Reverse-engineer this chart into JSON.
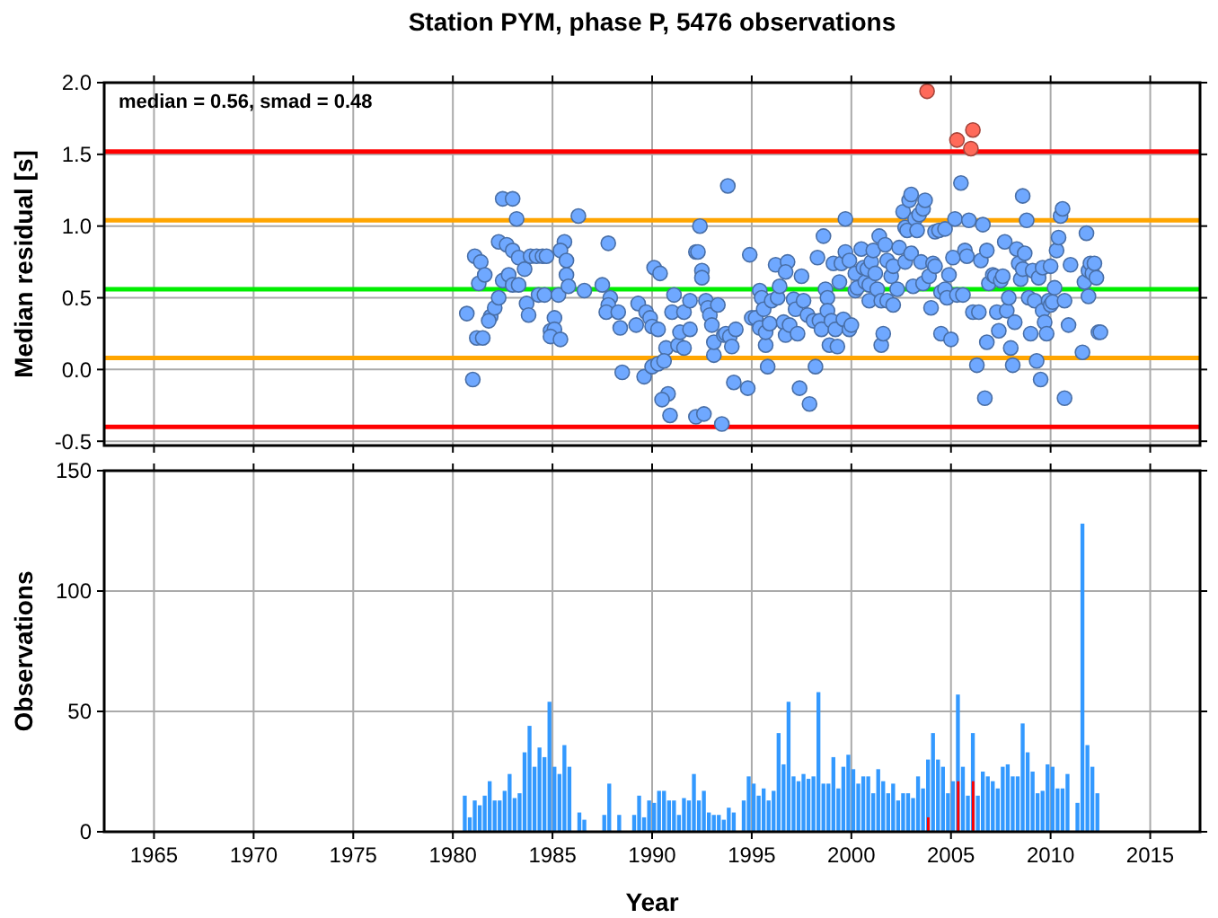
{
  "chart_data": [
    {
      "type": "scatter",
      "title": "Station PYM, phase P, 5476 observations",
      "ylabel": "Median residual [s]",
      "annotations": [
        "median = 0.56, smad = 0.48"
      ],
      "xlim": [
        1962.5,
        2017.5
      ],
      "xticks": [
        1965,
        1970,
        1975,
        1980,
        1985,
        1990,
        1995,
        2000,
        2005,
        2010,
        2015
      ],
      "ylim": [
        -0.53,
        2.0
      ],
      "yticks": [
        {
          "value": -0.5,
          "label": "-0.5"
        },
        {
          "value": 0,
          "label": "0.0"
        },
        {
          "value": 0.5,
          "label": "0.5"
        },
        {
          "value": 1,
          "label": "1.0"
        },
        {
          "value": 1.5,
          "label": "1.5"
        },
        {
          "value": 2,
          "label": "2.0"
        }
      ],
      "tick_labels": "y",
      "grid": true,
      "marker": "circle",
      "ref_lines": [
        {
          "axis": "y",
          "value": 1.52,
          "color": "#ff0000"
        },
        {
          "axis": "y",
          "value": 1.04,
          "color": "#ffa500"
        },
        {
          "axis": "y",
          "value": 0.56,
          "color": "#00ee00"
        },
        {
          "axis": "y",
          "value": 0.08,
          "color": "#ffa500"
        },
        {
          "axis": "y",
          "value": -0.4,
          "color": "#ff0000"
        }
      ],
      "series": [
        {
          "color": "#6fa8ff",
          "x": [
            1980.7,
            1981.0,
            1981.2,
            1981.5,
            1981.1,
            1981.4,
            1981.3,
            1981.6,
            1982.5,
            1983.0,
            1983.2,
            1982.3,
            1982.7,
            1983.0,
            1983.3,
            1981.9,
            1981.8,
            1982.1,
            1982.3,
            1982.5,
            1982.8,
            1983.0,
            1983.3,
            1983.6,
            1983.9,
            1984.2,
            1984.5,
            1984.7,
            1983.7,
            1983.8,
            1984.3,
            1984.6,
            1985.1,
            1984.9,
            1985.1,
            1984.9,
            1985.4,
            1985.3,
            1985.6,
            1985.4,
            1985.7,
            1985.7,
            1985.8,
            1986.3,
            1986.6,
            1987.5,
            1987.8,
            1987.9,
            1987.8,
            1987.7,
            1988.3,
            1988.4,
            1988.5,
            1989.2,
            1989.3,
            1989.6,
            1989.7,
            1989.9,
            1990.0,
            1990.3,
            1990.1,
            1990.4,
            1991.1,
            1990.7,
            1991.0,
            1991.3,
            1991.6,
            1991.4,
            1991.9,
            1991.6,
            1991.9,
            1990.0,
            1990.3,
            1990.6,
            1990.8,
            1990.5,
            1990.9,
            1992.2,
            1992.6,
            1993.5,
            1992.4,
            1992.2,
            1992.3,
            1992.5,
            1992.5,
            1992.7,
            1992.8,
            1992.9,
            1993.0,
            1993.3,
            1993.1,
            1993.1,
            1993.6,
            1993.8,
            1993.7,
            1993.9,
            1994.0,
            1994.2,
            1994.1,
            1994.8,
            1994.9,
            1995.0,
            1995.2,
            1995.4,
            1995.4,
            1995.5,
            1995.6,
            1995.7,
            1995.7,
            1995.8,
            1995.9,
            1996.0,
            1996.2,
            1996.3,
            1996.4,
            1996.6,
            1996.7,
            1996.8,
            1996.7,
            1996.9,
            1997.1,
            1997.2,
            1997.3,
            1997.4,
            1997.5,
            1997.6,
            1997.8,
            1997.9,
            1998.1,
            1998.2,
            1998.3,
            1998.4,
            1998.5,
            1998.6,
            1998.7,
            1998.8,
            1998.8,
            1998.9,
            1999.0,
            1999.1,
            1999.2,
            1999.3,
            1999.4,
            1999.5,
            1999.6,
            1999.7,
            1999.7,
            1999.9,
            1999.9,
            2000.0,
            2000.2,
            2000.2,
            2000.3,
            2000.5,
            2000.6,
            2000.7,
            2000.8,
            2000.9,
            2000.9,
            2001.0,
            2001.1,
            2001.2,
            2001.3,
            2001.4,
            2001.5,
            2001.5,
            2001.6,
            2001.7,
            2001.8,
            2001.8,
            2002.0,
            2002.1,
            2002.1,
            2002.3,
            2002.4,
            2002.6,
            2002.7,
            2002.7,
            2002.8,
            2002.9,
            2003.0,
            2003.0,
            2003.1,
            2003.2,
            2003.3,
            2003.4,
            2003.5,
            2003.6,
            2003.6,
            2003.7,
            2003.9,
            2004.0,
            2004.1,
            2004.2,
            2004.2,
            2004.4,
            2004.5,
            2004.5,
            2004.7,
            2004.7,
            2004.8,
            2004.9,
            2005.0,
            2005.1,
            2005.2,
            2005.3,
            2005.5,
            2005.6,
            2005.7,
            2005.8,
            2005.9,
            2006.1,
            2006.3,
            2006.4,
            2006.5,
            2006.6,
            2006.7,
            2006.8,
            2006.8,
            2006.9,
            2007.1,
            2007.2,
            2007.3,
            2007.4,
            2007.5,
            2007.6,
            2007.7,
            2007.8,
            2007.9,
            2008.0,
            2008.1,
            2008.2,
            2008.3,
            2008.4,
            2008.5,
            2008.6,
            2008.6,
            2008.7,
            2008.8,
            2008.9,
            2009.0,
            2009.1,
            2009.2,
            2009.3,
            2009.4,
            2009.5,
            2009.6,
            2009.6,
            2009.7,
            2009.8,
            2009.9,
            2010.0,
            2010.0,
            2010.1,
            2010.2,
            2010.3,
            2010.4,
            2010.5,
            2010.6,
            2010.7,
            2010.7,
            2010.9,
            2011.0,
            2011.6,
            2011.7,
            2011.8,
            2011.9,
            2012.0,
            2012.1,
            2012.2,
            2012.3,
            2012.4,
            2012.5,
            2011.9
          ],
          "values": [
            0.39,
            -0.07,
            0.22,
            0.22,
            0.79,
            0.75,
            0.6,
            0.66,
            1.19,
            1.19,
            1.05,
            0.89,
            0.87,
            0.83,
            0.78,
            0.37,
            0.34,
            0.43,
            0.5,
            0.62,
            0.66,
            0.59,
            0.59,
            0.7,
            0.79,
            0.79,
            0.79,
            0.79,
            0.46,
            0.38,
            0.52,
            0.52,
            0.36,
            0.27,
            0.28,
            0.23,
            0.21,
            0.52,
            0.89,
            0.83,
            0.76,
            0.66,
            0.58,
            1.07,
            0.55,
            0.59,
            0.88,
            0.5,
            0.45,
            0.4,
            0.4,
            0.29,
            -0.02,
            0.31,
            0.46,
            -0.05,
            0.4,
            0.36,
            0.3,
            0.28,
            0.71,
            0.67,
            0.52,
            0.15,
            0.4,
            0.17,
            0.15,
            0.26,
            0.28,
            0.4,
            0.48,
            0.02,
            0.04,
            0.06,
            -0.17,
            -0.21,
            -0.32,
            -0.33,
            -0.31,
            -0.38,
            1.0,
            0.82,
            0.82,
            0.69,
            0.64,
            0.48,
            0.43,
            0.38,
            0.31,
            0.45,
            0.1,
            0.19,
            0.24,
            1.28,
            0.25,
            0.23,
            0.16,
            0.28,
            -0.09,
            -0.13,
            0.8,
            0.36,
            0.36,
            0.29,
            0.55,
            0.5,
            0.42,
            0.17,
            0.26,
            0.02,
            0.32,
            0.48,
            0.73,
            0.5,
            0.58,
            0.33,
            0.24,
            0.75,
            0.68,
            0.31,
            0.49,
            0.42,
            0.25,
            -0.13,
            0.65,
            0.48,
            0.38,
            -0.24,
            0.34,
            0.02,
            0.78,
            0.34,
            0.28,
            0.93,
            0.56,
            0.5,
            0.41,
            0.17,
            0.34,
            0.74,
            0.28,
            0.16,
            0.61,
            0.74,
            0.35,
            1.05,
            0.82,
            0.28,
            0.76,
            0.31,
            0.55,
            0.67,
            0.57,
            0.84,
            0.71,
            0.61,
            0.7,
            0.48,
            0.59,
            0.75,
            0.83,
            0.67,
            0.56,
            0.93,
            0.17,
            0.48,
            0.25,
            0.87,
            0.76,
            0.48,
            0.65,
            0.72,
            0.45,
            0.56,
            0.85,
            1.1,
            0.99,
            0.75,
            0.97,
            1.18,
            0.81,
            1.22,
            0.58,
            1.05,
            0.97,
            1.08,
            0.75,
            0.6,
            1.12,
            1.18,
            0.65,
            0.43,
            0.74,
            0.72,
            0.96,
            0.97,
            0.54,
            0.25,
            0.98,
            0.56,
            0.5,
            0.66,
            0.21,
            0.78,
            1.05,
            0.52,
            1.3,
            0.52,
            0.83,
            0.79,
            1.04,
            0.4,
            0.03,
            0.4,
            0.76,
            1.01,
            -0.2,
            0.19,
            0.83,
            0.6,
            0.66,
            0.65,
            0.4,
            0.27,
            0.62,
            0.65,
            0.89,
            0.41,
            0.5,
            0.15,
            0.03,
            0.33,
            0.84,
            0.74,
            0.63,
            1.21,
            0.7,
            0.81,
            1.04,
            0.5,
            0.25,
            0.69,
            0.48,
            0.06,
            0.64,
            -0.07,
            0.71,
            0.41,
            0.33,
            0.25,
            0.48,
            0.72,
            0.45,
            0.47,
            0.57,
            0.83,
            0.92,
            1.07,
            1.12,
            -0.2,
            0.48,
            0.31,
            0.73,
            0.12,
            0.61,
            0.95,
            0.69,
            0.74,
            0.67,
            0.74,
            0.64,
            0.26,
            0.26,
            0.51
          ]
        },
        {
          "color": "#ff6a5a",
          "x": [
            2003.8,
            2005.3,
            2006.1,
            2006.0
          ],
          "values": [
            1.94,
            1.6,
            1.67,
            1.54
          ]
        }
      ]
    },
    {
      "type": "histogram",
      "xlabel": "Year",
      "ylabel": "Observations",
      "xlim": [
        1962.5,
        2017.5
      ],
      "xticks": [
        1965,
        1970,
        1975,
        1980,
        1985,
        1990,
        1995,
        2000,
        2005,
        2010,
        2015
      ],
      "ylim": [
        0,
        150
      ],
      "yticks": [
        0,
        50,
        100,
        150
      ],
      "grid": true,
      "bins": [
        1980.5,
        1980.75,
        1981,
        1981.25,
        1981.5,
        1981.75,
        1982,
        1982.25,
        1982.5,
        1982.75,
        1983,
        1983.25,
        1983.5,
        1983.75,
        1984,
        1984.25,
        1984.5,
        1984.75,
        1985,
        1985.25,
        1985.5,
        1985.75,
        1986,
        1986.25,
        1986.5,
        1986.75,
        1987,
        1987.25,
        1987.5,
        1987.75,
        1988,
        1988.25,
        1988.5,
        1988.75,
        1989,
        1989.25,
        1989.5,
        1989.75,
        1990,
        1990.25,
        1990.5,
        1990.75,
        1991,
        1991.25,
        1991.5,
        1991.75,
        1992,
        1992.25,
        1992.5,
        1992.75,
        1993,
        1993.25,
        1993.5,
        1993.75,
        1994,
        1994.25,
        1994.5,
        1994.75,
        1995,
        1995.25,
        1995.5,
        1995.75,
        1996,
        1996.25,
        1996.5,
        1996.75,
        1997,
        1997.25,
        1997.5,
        1997.75,
        1998,
        1998.25,
        1998.5,
        1998.75,
        1999,
        1999.25,
        1999.5,
        1999.75,
        2000,
        2000.25,
        2000.5,
        2000.75,
        2001,
        2001.25,
        2001.5,
        2001.75,
        2002,
        2002.25,
        2002.5,
        2002.75,
        2003,
        2003.25,
        2003.5,
        2003.75,
        2004,
        2004.25,
        2004.5,
        2004.75,
        2005,
        2005.25,
        2005.5,
        2005.75,
        2006,
        2006.25,
        2006.5,
        2006.75,
        2007,
        2007.25,
        2007.5,
        2007.75,
        2008,
        2008.25,
        2008.5,
        2008.75,
        2009,
        2009.25,
        2009.5,
        2009.75,
        2010,
        2010.25,
        2010.5,
        2010.75,
        2011,
        2011.25,
        2011.5,
        2011.75,
        2012,
        2012.25,
        2012.5
      ],
      "series": [
        {
          "color": "#3399ff",
          "values": [
            15,
            6,
            13,
            11,
            15,
            21,
            13,
            13,
            17,
            24,
            14,
            16,
            33,
            44,
            27,
            35,
            31,
            54,
            27,
            24,
            36,
            27,
            0,
            8,
            5,
            0,
            0,
            0,
            7,
            20,
            0,
            7,
            0,
            0,
            7,
            15,
            6,
            13,
            12,
            17,
            17,
            13,
            13,
            7,
            14,
            13,
            24,
            13,
            17,
            8,
            7,
            7,
            5,
            10,
            8,
            0,
            13,
            23,
            20,
            15,
            18,
            13,
            17,
            41,
            28,
            54,
            23,
            21,
            24,
            22,
            23,
            58,
            20,
            20,
            31,
            18,
            27,
            32,
            26,
            20,
            23,
            23,
            16,
            26,
            21,
            16,
            20,
            13,
            16,
            16,
            14,
            23,
            18,
            30,
            41,
            30,
            27,
            16,
            21,
            57,
            27,
            15,
            41,
            15,
            25,
            23,
            21,
            18,
            27,
            28,
            23,
            23,
            45,
            33,
            25,
            16,
            17,
            28,
            27,
            18,
            18,
            24,
            0,
            12,
            128,
            36,
            27,
            16
          ]
        },
        {
          "color": "#ff0000",
          "values": [
            0,
            0,
            0,
            0,
            0,
            0,
            0,
            0,
            0,
            0,
            0,
            0,
            0,
            0,
            0,
            0,
            0,
            0,
            0,
            0,
            0,
            0,
            0,
            0,
            0,
            0,
            0,
            0,
            0,
            0,
            0,
            0,
            0,
            0,
            0,
            0,
            0,
            0,
            0,
            0,
            0,
            0,
            0,
            0,
            0,
            0,
            0,
            0,
            0,
            0,
            0,
            0,
            0,
            0,
            0,
            0,
            0,
            0,
            0,
            0,
            0,
            0,
            0,
            0,
            0,
            0,
            0,
            0,
            0,
            0,
            0,
            0,
            0,
            0,
            0,
            0,
            0,
            0,
            0,
            0,
            0,
            0,
            0,
            0,
            0,
            0,
            0,
            0,
            0,
            0,
            0,
            0,
            0,
            6,
            0,
            0,
            0,
            0,
            0,
            21,
            0,
            0,
            21,
            0,
            0,
            0,
            0,
            0,
            0,
            0,
            0,
            0,
            0,
            0,
            0,
            0,
            0,
            0,
            0,
            0,
            0,
            0,
            0,
            0,
            0,
            0,
            0,
            0
          ]
        }
      ]
    }
  ]
}
